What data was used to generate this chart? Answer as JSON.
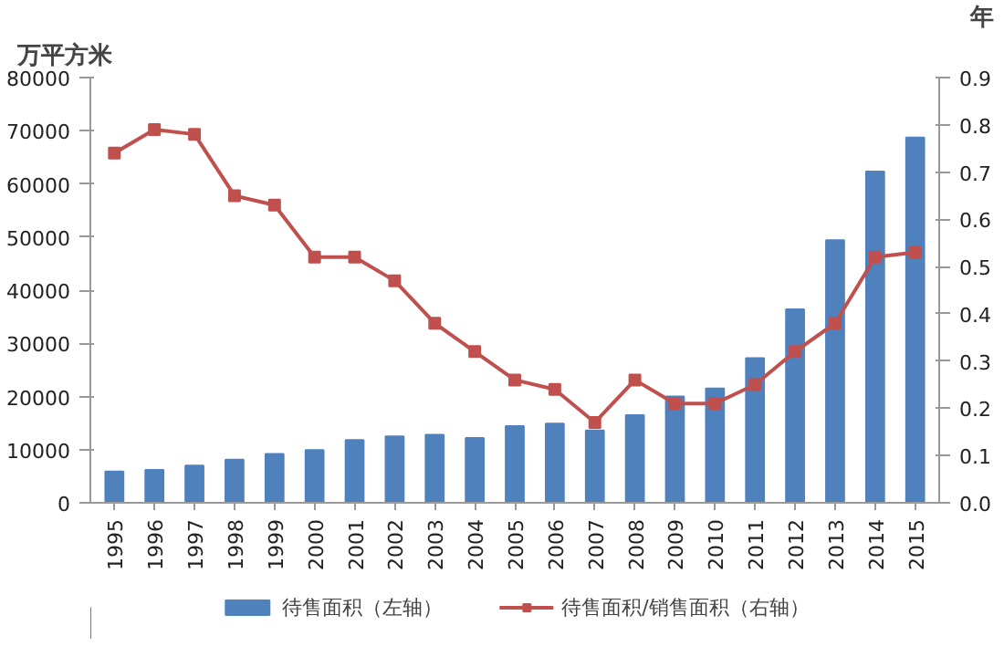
{
  "chart_data": {
    "type": "bar",
    "ylabel": "万平方米",
    "y2label": "年",
    "categories": [
      "1995",
      "1996",
      "1997",
      "1998",
      "1999",
      "2000",
      "2001",
      "2002",
      "2003",
      "2004",
      "2005",
      "2006",
      "2007",
      "2008",
      "2009",
      "2010",
      "2011",
      "2012",
      "2013",
      "2014",
      "2015"
    ],
    "series": [
      {
        "name": "待售面积（左轴）",
        "color": "#4f81bd",
        "values": [
          5900,
          6200,
          7000,
          8100,
          9200,
          9900,
          11800,
          12500,
          12800,
          12200,
          14400,
          14900,
          13600,
          16500,
          20000,
          21500,
          27200,
          36400,
          49400,
          62300,
          68700
        ]
      },
      {
        "name": "待售面积/销售面积（右轴）",
        "type": "line",
        "axis": "y2",
        "marker": "square",
        "color": "#c0504d",
        "values": [
          0.74,
          0.79,
          0.78,
          0.65,
          0.63,
          0.52,
          0.52,
          0.47,
          0.38,
          0.32,
          0.26,
          0.24,
          0.17,
          0.26,
          0.21,
          0.21,
          0.25,
          0.32,
          0.38,
          0.52,
          0.53
        ]
      }
    ],
    "ylim": [
      0,
      80000
    ],
    "yticks": [
      0,
      10000,
      20000,
      30000,
      40000,
      50000,
      60000,
      70000,
      80000
    ],
    "y2lim": [
      0,
      0.9
    ],
    "y2ticks": [
      {
        "value": 0,
        "label": "0.0"
      },
      0.1,
      0.2,
      0.3,
      0.4,
      0.5,
      0.6,
      0.7,
      0.8,
      0.9
    ],
    "grid": false,
    "legend": "bottom"
  }
}
